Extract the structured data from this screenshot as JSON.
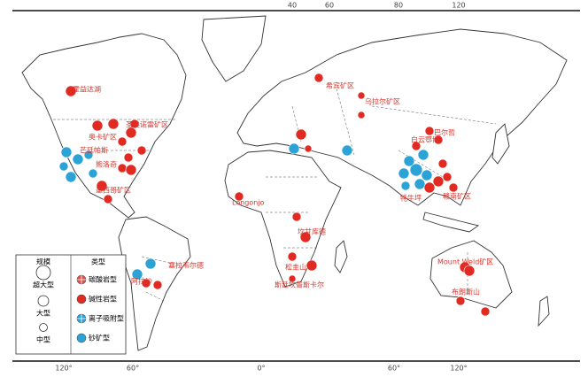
{
  "map": {
    "top_degree_labels": [
      "40",
      "60",
      "80",
      "120"
    ],
    "bottom_degree_labels": [
      "120°",
      "60°",
      "0°",
      "60°",
      "120°"
    ],
    "legend": {
      "size_title": "规模",
      "sizes": [
        "超大型",
        "大型",
        "中型"
      ],
      "type_title": "类型",
      "types": [
        {
          "name": "碳酸岩型",
          "color": "#d9534f",
          "hatched": true
        },
        {
          "name": "碱性岩型",
          "color": "#e02a22",
          "hatched": false
        },
        {
          "name": "离子吸附型",
          "color": "#2ba3d6",
          "hatched": true
        },
        {
          "name": "砂矿型",
          "color": "#2ba3d6",
          "hatched": false
        }
      ]
    },
    "deposit_labels": [
      "霍益达湖",
      "圣奥诺雷矿区",
      "奥卡矿区",
      "芒廷帕斯",
      "熊洛奇",
      "墨西哥矿区",
      "阿拉沙",
      "塞拉韦尔德",
      "希宾矿区",
      "乌拉尔矿区",
      "Longonjo",
      "坎甘库德",
      "松圭山",
      "斯廷坎普斯卡尔",
      "白云鄂博",
      "巴尔哲",
      "牦牛坪",
      "赣南矿区",
      "Mount Weld矿区",
      "布朗斯山"
    ],
    "label_color": "#d8342c"
  }
}
